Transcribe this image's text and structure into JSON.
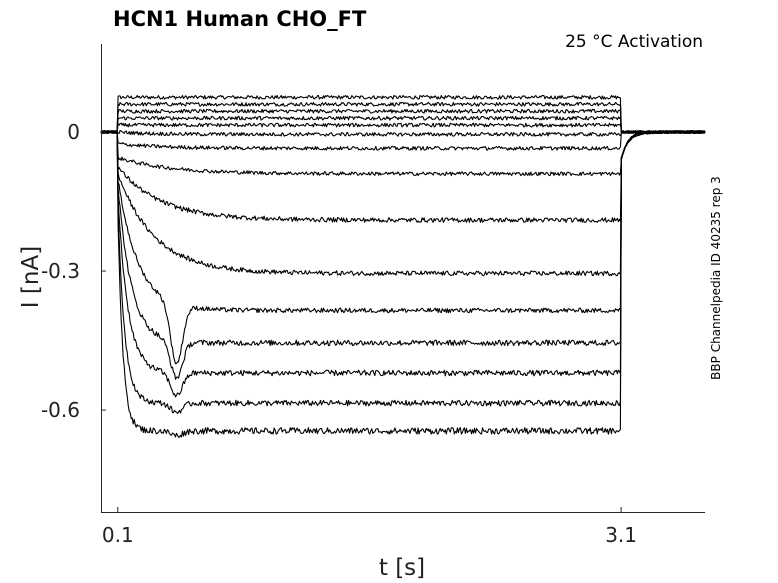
{
  "chart_data": {
    "type": "line",
    "title": "HCN1  Human  CHO_FT",
    "annotation": "25 °C  Activation",
    "side_note": "BBP Channelpedia ID 40235 rep 3",
    "xlabel": "t [s]",
    "ylabel": "I [nA]",
    "xlim": [
      0.0,
      3.6
    ],
    "ylim": [
      -0.82,
      0.19
    ],
    "xticks": [
      0.1,
      3.1
    ],
    "xtick_labels": [
      "0.1",
      "3.1"
    ],
    "yticks": [
      0,
      -0.3,
      -0.6
    ],
    "ytick_labels": [
      "0",
      "-0.3",
      "-0.6"
    ],
    "grid": false,
    "step": {
      "start": 0.1,
      "end": 3.1
    },
    "traces": [
      {
        "initial": 0.075,
        "steady": 0.075,
        "tau": 0.1,
        "noise": 0.004,
        "sag": 0
      },
      {
        "initial": 0.06,
        "steady": 0.06,
        "tau": 0.1,
        "noise": 0.004,
        "sag": 0
      },
      {
        "initial": 0.045,
        "steady": 0.045,
        "tau": 0.1,
        "noise": 0.004,
        "sag": 0
      },
      {
        "initial": 0.03,
        "steady": 0.03,
        "tau": 0.1,
        "noise": 0.004,
        "sag": 0
      },
      {
        "initial": 0.015,
        "steady": 0.015,
        "tau": 0.1,
        "noise": 0.004,
        "sag": 0
      },
      {
        "initial": 0.0,
        "steady": -0.005,
        "tau": 0.2,
        "noise": 0.004,
        "sag": 0
      },
      {
        "initial": -0.025,
        "steady": -0.035,
        "tau": 0.25,
        "noise": 0.004,
        "sag": 0
      },
      {
        "initial": -0.055,
        "steady": -0.09,
        "tau": 0.3,
        "noise": 0.004,
        "sag": 0
      },
      {
        "initial": -0.075,
        "steady": -0.19,
        "tau": 0.25,
        "noise": 0.005,
        "sag": 0
      },
      {
        "initial": -0.09,
        "steady": -0.305,
        "tau": 0.22,
        "noise": 0.005,
        "sag": 0
      },
      {
        "initial": -0.1,
        "steady": -0.385,
        "tau": 0.12,
        "noise": 0.005,
        "sag": 0.13
      },
      {
        "initial": -0.11,
        "steady": -0.455,
        "tau": 0.08,
        "noise": 0.006,
        "sag": 0.08
      },
      {
        "initial": -0.13,
        "steady": -0.52,
        "tau": 0.06,
        "noise": 0.006,
        "sag": 0.05
      },
      {
        "initial": -0.15,
        "steady": -0.585,
        "tau": 0.04,
        "noise": 0.006,
        "sag": 0.02
      },
      {
        "initial": -0.17,
        "steady": -0.645,
        "tau": 0.03,
        "noise": 0.007,
        "sag": 0.01
      }
    ]
  }
}
